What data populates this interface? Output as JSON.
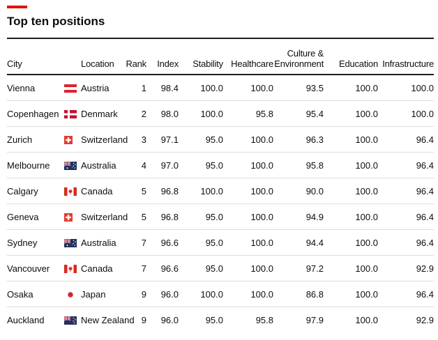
{
  "accent_color": "#E3120B",
  "header": {
    "title": "Top ten positions"
  },
  "table": {
    "columns": {
      "city": "City",
      "location": "Location",
      "rank": "Rank",
      "index": "Index",
      "stability": "Stability",
      "healthcare": "Healthcare",
      "culture_line1": "Culture &",
      "culture_line2": "Environment",
      "education": "Education",
      "infrastructure": "Infrastructure"
    },
    "rows": [
      {
        "city": "Vienna",
        "flag": "austria",
        "location": "Austria",
        "rank": "1",
        "index": "98.4",
        "stability": "100.0",
        "healthcare": "100.0",
        "culture": "93.5",
        "education": "100.0",
        "infrastructure": "100.0"
      },
      {
        "city": "Copenhagen",
        "flag": "denmark",
        "location": "Denmark",
        "rank": "2",
        "index": "98.0",
        "stability": "100.0",
        "healthcare": "95.8",
        "culture": "95.4",
        "education": "100.0",
        "infrastructure": "100.0"
      },
      {
        "city": "Zurich",
        "flag": "switzerland",
        "location": "Switzerland",
        "rank": "3",
        "index": "97.1",
        "stability": "95.0",
        "healthcare": "100.0",
        "culture": "96.3",
        "education": "100.0",
        "infrastructure": "96.4"
      },
      {
        "city": "Melbourne",
        "flag": "australia",
        "location": "Australia",
        "rank": "4",
        "index": "97.0",
        "stability": "95.0",
        "healthcare": "100.0",
        "culture": "95.8",
        "education": "100.0",
        "infrastructure": "96.4"
      },
      {
        "city": "Calgary",
        "flag": "canada",
        "location": "Canada",
        "rank": "5",
        "index": "96.8",
        "stability": "100.0",
        "healthcare": "100.0",
        "culture": "90.0",
        "education": "100.0",
        "infrastructure": "96.4"
      },
      {
        "city": "Geneva",
        "flag": "switzerland",
        "location": "Switzerland",
        "rank": "5",
        "index": "96.8",
        "stability": "95.0",
        "healthcare": "100.0",
        "culture": "94.9",
        "education": "100.0",
        "infrastructure": "96.4"
      },
      {
        "city": "Sydney",
        "flag": "australia",
        "location": "Australia",
        "rank": "7",
        "index": "96.6",
        "stability": "95.0",
        "healthcare": "100.0",
        "culture": "94.4",
        "education": "100.0",
        "infrastructure": "96.4"
      },
      {
        "city": "Vancouver",
        "flag": "canada",
        "location": "Canada",
        "rank": "7",
        "index": "96.6",
        "stability": "95.0",
        "healthcare": "100.0",
        "culture": "97.2",
        "education": "100.0",
        "infrastructure": "92.9"
      },
      {
        "city": "Osaka",
        "flag": "japan",
        "location": "Japan",
        "rank": "9",
        "index": "96.0",
        "stability": "100.0",
        "healthcare": "100.0",
        "culture": "86.8",
        "education": "100.0",
        "infrastructure": "96.4"
      },
      {
        "city": "Auckland",
        "flag": "newzealand",
        "location": "New Zealand",
        "rank": "9",
        "index": "96.0",
        "stability": "95.0",
        "healthcare": "95.8",
        "culture": "97.9",
        "education": "100.0",
        "infrastructure": "92.9"
      }
    ]
  },
  "chart_data": {
    "type": "table",
    "title": "Top ten positions",
    "columns": [
      "City",
      "Location",
      "Rank",
      "Index",
      "Stability",
      "Healthcare",
      "Culture & Environment",
      "Education",
      "Infrastructure"
    ],
    "rows": [
      [
        "Vienna",
        "Austria",
        1,
        98.4,
        100.0,
        100.0,
        93.5,
        100.0,
        100.0
      ],
      [
        "Copenhagen",
        "Denmark",
        2,
        98.0,
        100.0,
        95.8,
        95.4,
        100.0,
        100.0
      ],
      [
        "Zurich",
        "Switzerland",
        3,
        97.1,
        95.0,
        100.0,
        96.3,
        100.0,
        96.4
      ],
      [
        "Melbourne",
        "Australia",
        4,
        97.0,
        95.0,
        100.0,
        95.8,
        100.0,
        96.4
      ],
      [
        "Calgary",
        "Canada",
        5,
        96.8,
        100.0,
        100.0,
        90.0,
        100.0,
        96.4
      ],
      [
        "Geneva",
        "Switzerland",
        5,
        96.8,
        95.0,
        100.0,
        94.9,
        100.0,
        96.4
      ],
      [
        "Sydney",
        "Australia",
        7,
        96.6,
        95.0,
        100.0,
        94.4,
        100.0,
        96.4
      ],
      [
        "Vancouver",
        "Canada",
        7,
        96.6,
        95.0,
        100.0,
        97.2,
        100.0,
        92.9
      ],
      [
        "Osaka",
        "Japan",
        9,
        96.0,
        100.0,
        100.0,
        86.8,
        100.0,
        96.4
      ],
      [
        "Auckland",
        "New Zealand",
        9,
        96.0,
        95.0,
        95.8,
        97.9,
        100.0,
        92.9
      ]
    ]
  }
}
